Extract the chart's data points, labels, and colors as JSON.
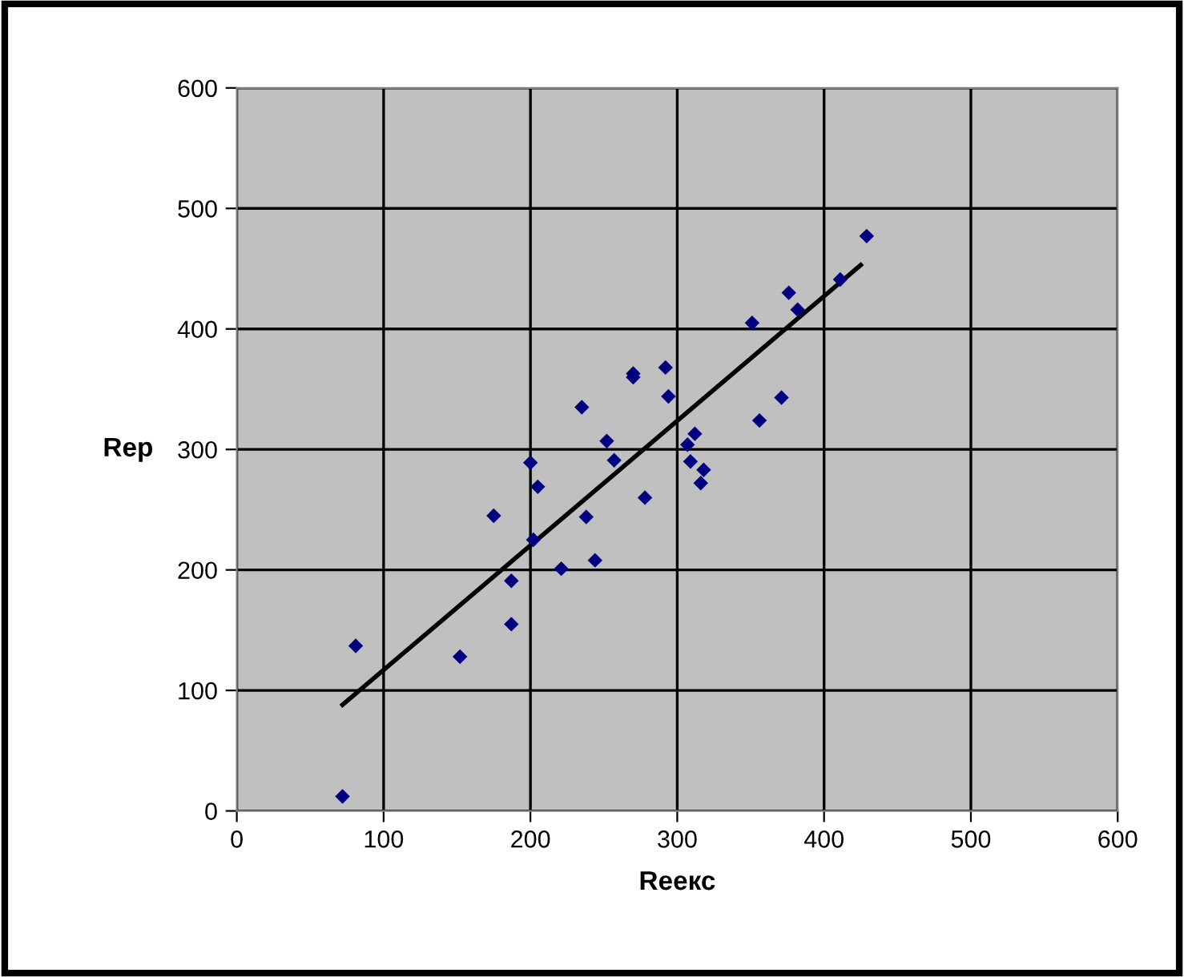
{
  "chart_data": {
    "type": "scatter",
    "xlabel": "Reекс",
    "ylabel": "Rep",
    "xlim": [
      0,
      600
    ],
    "ylim": [
      0,
      600
    ],
    "xticks": [
      0,
      100,
      200,
      300,
      400,
      500,
      600
    ],
    "yticks": [
      0,
      100,
      200,
      300,
      400,
      500,
      600
    ],
    "grid": true,
    "series": [
      {
        "marker": "diamond",
        "color": "#000080",
        "x": [
          72,
          81,
          152,
          175,
          187,
          187,
          200,
          205,
          202,
          221,
          235,
          238,
          244,
          252,
          257,
          270,
          270,
          278,
          292,
          294,
          307,
          309,
          312,
          316,
          318,
          351,
          356,
          371,
          376,
          382,
          411,
          429
        ],
        "values": [
          12,
          137,
          128,
          245,
          191,
          155,
          289,
          269,
          225,
          201,
          335,
          244,
          208,
          307,
          291,
          360,
          363,
          260,
          368,
          344,
          304,
          290,
          313,
          272,
          283,
          405,
          324,
          343,
          430,
          416,
          441,
          477
        ]
      },
      {
        "type": "line",
        "color": "#000000",
        "x": [
          72,
          425
        ],
        "values": [
          88,
          453
        ]
      }
    ]
  }
}
